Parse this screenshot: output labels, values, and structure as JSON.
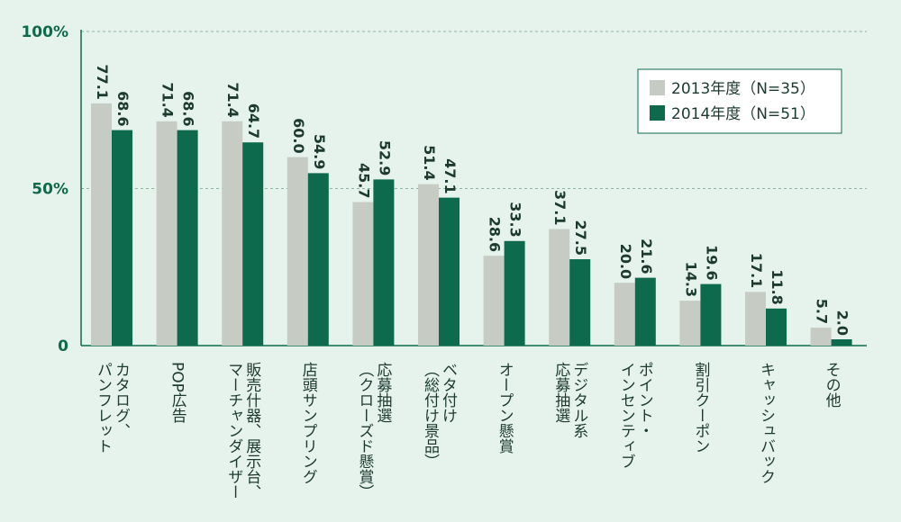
{
  "colors": {
    "background": "#e6f2ec",
    "series_2013": "#c6ccc3",
    "series_2014": "#0e6a4c",
    "axis": "#0e6a4c"
  },
  "chart_data": {
    "type": "bar",
    "title": "",
    "xlabel": "",
    "ylabel": "",
    "ylim": [
      0,
      100
    ],
    "y_ticks": [
      "0",
      "50%",
      "100%"
    ],
    "y_tick_values": [
      0,
      50,
      100
    ],
    "legend_placement": "top-right",
    "grid": true,
    "categories": [
      [
        "カタログ、",
        "パンフレット"
      ],
      [
        "POP広告"
      ],
      [
        "販売什器、展示台、",
        "マーチャンダイザー"
      ],
      [
        "店頭サンプリング"
      ],
      [
        "応募抽選",
        "（クローズド懸賞）"
      ],
      [
        "ベタ付け",
        "（総付け景品）"
      ],
      [
        "オープン懸賞"
      ],
      [
        "デジタル系",
        "応募抽選"
      ],
      [
        "ポイント・",
        "インセンティブ"
      ],
      [
        "割引クーポン"
      ],
      [
        "キャッシュバック"
      ],
      [
        "その他"
      ]
    ],
    "series": [
      {
        "name": "2013年度（N=35）",
        "values": [
          77.1,
          71.4,
          71.4,
          60.0,
          45.7,
          51.4,
          28.6,
          37.1,
          20.0,
          14.3,
          17.1,
          5.7
        ],
        "labels": [
          "77.1",
          "71.4",
          "71.4",
          "60.0",
          "45.7",
          "51.4",
          "28.6",
          "37.1",
          "20.0",
          "14.3",
          "17.1",
          "5.7"
        ]
      },
      {
        "name": "2014年度（N=51）",
        "values": [
          68.6,
          68.6,
          64.7,
          54.9,
          52.9,
          47.1,
          33.3,
          27.5,
          21.6,
          19.6,
          11.8,
          2.0
        ],
        "labels": [
          "68.6",
          "68.6",
          "64.7",
          "54.9",
          "52.9",
          "47.1",
          "33.3",
          "27.5",
          "21.6",
          "19.6",
          "11.8",
          "2.0"
        ]
      }
    ]
  }
}
